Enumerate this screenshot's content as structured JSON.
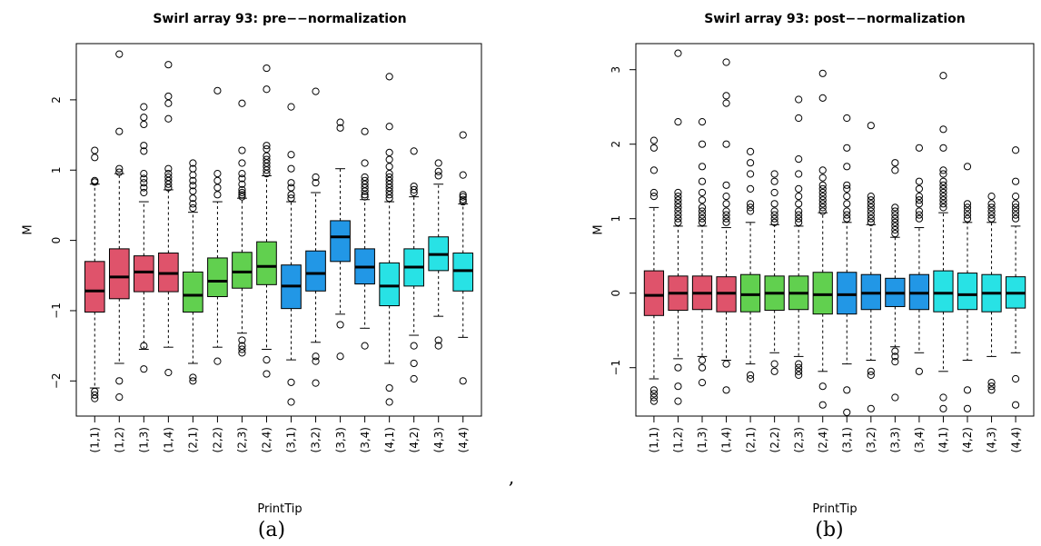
{
  "separator": ",",
  "panel_labels": [
    "(a)",
    "(b)"
  ],
  "chart_data": [
    {
      "type": "box",
      "title": "Swirl array 93: pre−−normalization",
      "xlabel": "PrintTip",
      "ylabel": "M",
      "ylim": [
        -2.5,
        2.8
      ],
      "yticks": [
        -2,
        -1,
        0,
        1,
        2
      ],
      "categories": [
        "(1,1)",
        "(1,2)",
        "(1,3)",
        "(1,4)",
        "(2,1)",
        "(2,2)",
        "(2,3)",
        "(2,4)",
        "(3,1)",
        "(3,2)",
        "(3,3)",
        "(3,4)",
        "(4,1)",
        "(4,2)",
        "(4,3)",
        "(4,4)"
      ],
      "group_colors": [
        "#df536b",
        "#61d04f",
        "#2297e6",
        "#28e2e5"
      ],
      "boxes": [
        {
          "q1": -1.02,
          "median": -0.72,
          "q3": -0.3,
          "whislo": -2.1,
          "whishi": 0.8,
          "outliers": [
            1.28,
            1.18,
            0.85,
            0.83,
            -2.15,
            -2.2,
            -2.25
          ]
        },
        {
          "q1": -0.83,
          "median": -0.52,
          "q3": -0.12,
          "whislo": -1.75,
          "whishi": 0.95,
          "outliers": [
            2.65,
            1.55,
            1.02,
            0.97,
            -2.0,
            -2.23
          ]
        },
        {
          "q1": -0.73,
          "median": -0.45,
          "q3": -0.22,
          "whislo": -1.55,
          "whishi": 0.55,
          "outliers": [
            1.9,
            1.75,
            1.65,
            1.35,
            1.27,
            0.95,
            0.88,
            0.82,
            0.75,
            0.68,
            -1.5,
            -1.83
          ]
        },
        {
          "q1": -0.73,
          "median": -0.47,
          "q3": -0.18,
          "whislo": -1.52,
          "whishi": 0.72,
          "outliers": [
            2.5,
            2.05,
            1.95,
            1.73,
            1.02,
            0.95,
            0.9,
            0.85,
            0.8,
            0.75,
            -1.88
          ]
        },
        {
          "q1": -1.02,
          "median": -0.78,
          "q3": -0.45,
          "whislo": -1.75,
          "whishi": 0.4,
          "outliers": [
            1.1,
            1.02,
            0.93,
            0.85,
            0.78,
            0.7,
            0.6,
            0.52,
            0.46,
            -1.95,
            -2.0
          ]
        },
        {
          "q1": -0.8,
          "median": -0.58,
          "q3": -0.25,
          "whislo": -1.52,
          "whishi": 0.55,
          "outliers": [
            2.13,
            0.95,
            0.85,
            0.75,
            0.65,
            -1.72
          ]
        },
        {
          "q1": -0.68,
          "median": -0.45,
          "q3": -0.17,
          "whislo": -1.32,
          "whishi": 0.6,
          "outliers": [
            1.95,
            1.28,
            1.1,
            0.95,
            0.88,
            0.8,
            0.72,
            0.68,
            0.65,
            0.62,
            -1.42,
            -1.5,
            -1.55,
            -1.6
          ]
        },
        {
          "q1": -0.63,
          "median": -0.37,
          "q3": -0.02,
          "whislo": -1.55,
          "whishi": 0.92,
          "outliers": [
            2.45,
            2.15,
            1.35,
            1.3,
            1.2,
            1.15,
            1.1,
            1.05,
            1.0,
            0.95,
            -1.7,
            -1.9
          ]
        },
        {
          "q1": -0.97,
          "median": -0.65,
          "q3": -0.35,
          "whislo": -1.7,
          "whishi": 0.55,
          "outliers": [
            1.9,
            1.22,
            1.02,
            0.82,
            0.75,
            0.65,
            0.6,
            -2.02,
            -2.3
          ]
        },
        {
          "q1": -0.72,
          "median": -0.47,
          "q3": -0.15,
          "whislo": -1.45,
          "whishi": 0.68,
          "outliers": [
            2.12,
            0.9,
            0.82,
            -1.65,
            -1.72,
            -2.03
          ]
        },
        {
          "q1": -0.3,
          "median": 0.05,
          "q3": 0.28,
          "whislo": -1.05,
          "whishi": 1.02,
          "outliers": [
            1.68,
            1.6,
            -1.2,
            -1.65
          ]
        },
        {
          "q1": -0.62,
          "median": -0.38,
          "q3": -0.12,
          "whislo": -1.25,
          "whishi": 0.58,
          "outliers": [
            1.55,
            1.1,
            0.9,
            0.85,
            0.8,
            0.75,
            0.7,
            0.65,
            0.62,
            -1.5
          ]
        },
        {
          "q1": -0.93,
          "median": -0.65,
          "q3": -0.32,
          "whislo": -1.75,
          "whishi": 0.55,
          "outliers": [
            2.33,
            1.62,
            1.25,
            1.15,
            1.05,
            0.95,
            0.9,
            0.85,
            0.8,
            0.75,
            0.7,
            0.65,
            0.6,
            -2.1,
            -2.3
          ]
        },
        {
          "q1": -0.65,
          "median": -0.38,
          "q3": -0.12,
          "whislo": -1.35,
          "whishi": 0.62,
          "outliers": [
            1.27,
            0.77,
            0.72,
            0.68,
            -1.5,
            -1.75,
            -1.97
          ]
        },
        {
          "q1": -0.43,
          "median": -0.2,
          "q3": 0.05,
          "whislo": -1.08,
          "whishi": 0.8,
          "outliers": [
            1.1,
            0.98,
            0.92,
            -1.42,
            -1.5
          ]
        },
        {
          "q1": -0.72,
          "median": -0.43,
          "q3": -0.18,
          "whislo": -1.38,
          "whishi": 0.52,
          "outliers": [
            1.5,
            0.93,
            0.65,
            0.62,
            0.58,
            0.55,
            -2.0
          ]
        }
      ]
    },
    {
      "type": "box",
      "title": "Swirl array 93: post−−normalization",
      "xlabel": "PrintTip",
      "ylabel": "M",
      "ylim": [
        -1.65,
        3.35
      ],
      "yticks": [
        -1,
        0,
        1,
        2,
        3
      ],
      "categories": [
        "(1,1)",
        "(1,2)",
        "(1,3)",
        "(1,4)",
        "(2,1)",
        "(2,2)",
        "(2,3)",
        "(2,4)",
        "(3,1)",
        "(3,2)",
        "(3,3)",
        "(3,4)",
        "(4,1)",
        "(4,2)",
        "(4,3)",
        "(4,4)"
      ],
      "group_colors": [
        "#df536b",
        "#61d04f",
        "#2297e6",
        "#28e2e5"
      ],
      "boxes": [
        {
          "q1": -0.3,
          "median": -0.03,
          "q3": 0.3,
          "whislo": -1.15,
          "whishi": 1.15,
          "outliers": [
            2.05,
            1.95,
            1.65,
            1.35,
            1.3,
            -1.3,
            -1.35,
            -1.4,
            -1.45
          ]
        },
        {
          "q1": -0.23,
          "median": 0.0,
          "q3": 0.23,
          "whislo": -0.88,
          "whishi": 0.9,
          "outliers": [
            3.22,
            2.3,
            1.35,
            1.3,
            1.25,
            1.2,
            1.15,
            1.1,
            1.05,
            1.0,
            0.95,
            -1.0,
            -1.25,
            -1.45
          ]
        },
        {
          "q1": -0.22,
          "median": 0.0,
          "q3": 0.23,
          "whislo": -0.85,
          "whishi": 0.9,
          "outliers": [
            2.3,
            2.0,
            1.7,
            1.5,
            1.35,
            1.25,
            1.15,
            1.1,
            1.05,
            1.0,
            0.95,
            -0.9,
            -1.0,
            -1.2
          ]
        },
        {
          "q1": -0.25,
          "median": 0.0,
          "q3": 0.22,
          "whislo": -0.9,
          "whishi": 0.88,
          "outliers": [
            3.1,
            2.65,
            2.55,
            2.0,
            1.45,
            1.3,
            1.2,
            1.1,
            1.05,
            1.0,
            0.95,
            -0.95,
            -1.3
          ]
        },
        {
          "q1": -0.25,
          "median": -0.02,
          "q3": 0.25,
          "whislo": -0.95,
          "whishi": 0.95,
          "outliers": [
            1.9,
            1.75,
            1.6,
            1.4,
            1.2,
            1.15,
            1.1,
            -1.1,
            -1.15
          ]
        },
        {
          "q1": -0.23,
          "median": 0.0,
          "q3": 0.23,
          "whislo": -0.8,
          "whishi": 0.92,
          "outliers": [
            1.6,
            1.5,
            1.35,
            1.2,
            1.1,
            1.05,
            1.0,
            0.95,
            -0.95,
            -1.05
          ]
        },
        {
          "q1": -0.22,
          "median": 0.0,
          "q3": 0.23,
          "whislo": -0.85,
          "whishi": 0.9,
          "outliers": [
            2.6,
            2.35,
            1.8,
            1.6,
            1.4,
            1.3,
            1.2,
            1.1,
            1.05,
            1.0,
            0.95,
            -0.95,
            -1.0,
            -1.05,
            -1.1
          ]
        },
        {
          "q1": -0.28,
          "median": -0.02,
          "q3": 0.28,
          "whislo": -1.05,
          "whishi": 1.08,
          "outliers": [
            2.95,
            2.62,
            1.65,
            1.55,
            1.45,
            1.4,
            1.35,
            1.3,
            1.25,
            1.2,
            1.15,
            1.1,
            -1.25,
            -1.5
          ]
        },
        {
          "q1": -0.28,
          "median": -0.02,
          "q3": 0.28,
          "whislo": -0.95,
          "whishi": 0.95,
          "outliers": [
            2.35,
            1.95,
            1.7,
            1.45,
            1.4,
            1.3,
            1.2,
            1.1,
            1.05,
            1.0,
            -1.3,
            -1.6
          ]
        },
        {
          "q1": -0.22,
          "median": 0.0,
          "q3": 0.25,
          "whislo": -0.9,
          "whishi": 0.92,
          "outliers": [
            2.25,
            1.3,
            1.25,
            1.2,
            1.15,
            1.1,
            1.05,
            1.0,
            0.95,
            -1.05,
            -1.1,
            -1.55
          ]
        },
        {
          "q1": -0.18,
          "median": 0.0,
          "q3": 0.2,
          "whislo": -0.72,
          "whishi": 0.75,
          "outliers": [
            1.75,
            1.65,
            1.15,
            1.1,
            1.05,
            1.0,
            0.95,
            0.9,
            0.85,
            0.8,
            -0.78,
            -0.85,
            -0.92,
            -1.4
          ]
        },
        {
          "q1": -0.22,
          "median": 0.0,
          "q3": 0.25,
          "whislo": -0.8,
          "whishi": 0.88,
          "outliers": [
            1.95,
            1.5,
            1.4,
            1.3,
            1.25,
            1.2,
            1.1,
            1.05,
            1.0,
            -1.05
          ]
        },
        {
          "q1": -0.25,
          "median": 0.0,
          "q3": 0.3,
          "whislo": -1.05,
          "whishi": 1.08,
          "outliers": [
            2.92,
            2.2,
            1.95,
            1.65,
            1.6,
            1.5,
            1.45,
            1.4,
            1.35,
            1.3,
            1.25,
            1.2,
            1.15,
            -1.4,
            -1.55
          ]
        },
        {
          "q1": -0.22,
          "median": -0.02,
          "q3": 0.27,
          "whislo": -0.9,
          "whishi": 0.95,
          "outliers": [
            1.7,
            1.2,
            1.15,
            1.1,
            1.05,
            1.0,
            -1.3,
            -1.55
          ]
        },
        {
          "q1": -0.25,
          "median": 0.0,
          "q3": 0.25,
          "whislo": -0.85,
          "whishi": 0.95,
          "outliers": [
            1.3,
            1.2,
            1.15,
            1.1,
            1.05,
            1.0,
            -1.2,
            -1.25,
            -1.3
          ]
        },
        {
          "q1": -0.2,
          "median": 0.0,
          "q3": 0.22,
          "whislo": -0.8,
          "whishi": 0.9,
          "outliers": [
            1.92,
            1.5,
            1.3,
            1.2,
            1.15,
            1.1,
            1.05,
            1.0,
            -1.15,
            -1.5
          ]
        }
      ]
    }
  ]
}
